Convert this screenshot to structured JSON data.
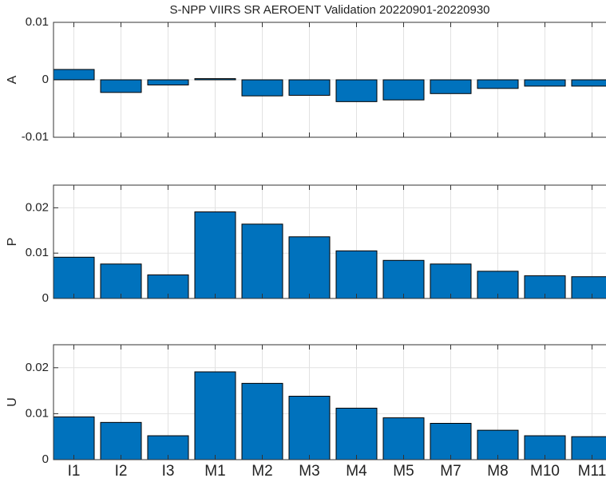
{
  "chart_data": [
    {
      "type": "bar",
      "title": "S-NPP VIIRS SR AEROENT Validation 20220901-20220930",
      "y_label": "A",
      "values": [
        0.0018,
        -0.0022,
        -0.0009,
        0.0002,
        -0.0028,
        -0.0027,
        -0.0038,
        -0.0035,
        -0.0024,
        -0.0015,
        -0.0011,
        -0.0011
      ],
      "color": "#0072bd",
      "ylim": [
        -0.01,
        0.01
      ],
      "yticks": [
        -0.01,
        0,
        0.01
      ],
      "grid": true
    },
    {
      "type": "bar",
      "y_label": "P",
      "values": [
        0.0091,
        0.0076,
        0.0052,
        0.0191,
        0.0164,
        0.0136,
        0.0105,
        0.0084,
        0.0076,
        0.006,
        0.005,
        0.0048
      ],
      "color": "#0072bd",
      "ylim": [
        0,
        0.025
      ],
      "yticks": [
        0,
        0.01,
        0.02
      ],
      "grid": true
    },
    {
      "type": "bar",
      "y_label": "U",
      "categories": [
        "I1",
        "I2",
        "I3",
        "M1",
        "M2",
        "M3",
        "M4",
        "M5",
        "M7",
        "M8",
        "M10",
        "M11"
      ],
      "values": [
        0.0093,
        0.0081,
        0.0052,
        0.0191,
        0.0166,
        0.0138,
        0.0112,
        0.0091,
        0.0079,
        0.0064,
        0.0052,
        0.005
      ],
      "color": "#0072bd",
      "ylim": [
        0,
        0.025
      ],
      "yticks": [
        0,
        0.01,
        0.02
      ],
      "grid": true
    }
  ]
}
